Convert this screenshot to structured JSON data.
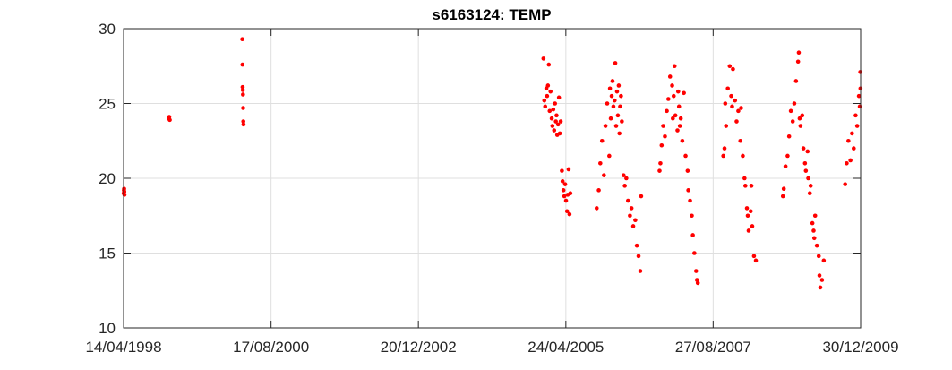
{
  "chart_data": {
    "type": "scatter",
    "title": "s6163124: TEMP",
    "xlabel": "",
    "ylabel": "",
    "xlim": [
      "1998-04-14",
      "2009-12-30"
    ],
    "ylim": [
      10,
      30
    ],
    "x_ticks": [
      "1998-04-14",
      "2000-08-17",
      "2002-12-20",
      "2005-04-24",
      "2007-08-27",
      "2009-12-30"
    ],
    "x_tick_labels": [
      "14/04/1998",
      "17/08/2000",
      "20/12/2002",
      "24/04/2005",
      "27/08/2007",
      "30/12/2009"
    ],
    "y_ticks": [
      10,
      15,
      20,
      25,
      30
    ],
    "y_tick_labels": [
      "10",
      "15",
      "20",
      "25",
      "30"
    ],
    "grid": true,
    "marker_color": "#ff0000",
    "series": [
      {
        "points": [
          [
            "1998-04-15",
            19.0
          ],
          [
            "1998-04-16",
            19.2
          ],
          [
            "1998-04-17",
            19.3
          ],
          [
            "1998-04-18",
            19.1
          ],
          [
            "1998-04-19",
            18.9
          ],
          [
            "1999-01-01",
            24.0
          ],
          [
            "1999-01-04",
            24.1
          ],
          [
            "1999-01-07",
            23.9
          ],
          [
            "2000-03-03",
            29.3
          ],
          [
            "2000-03-04",
            27.6
          ],
          [
            "2000-03-05",
            26.1
          ],
          [
            "2000-03-06",
            25.9
          ],
          [
            "2000-03-07",
            25.6
          ],
          [
            "2000-03-08",
            24.7
          ],
          [
            "2000-03-09",
            23.8
          ],
          [
            "2000-03-10",
            23.6
          ],
          [
            "2004-12-15",
            28.0
          ],
          [
            "2004-12-20",
            25.2
          ],
          [
            "2004-12-25",
            24.8
          ],
          [
            "2005-01-01",
            26.0
          ],
          [
            "2005-01-05",
            25.5
          ],
          [
            "2005-01-10",
            26.2
          ],
          [
            "2005-01-15",
            27.6
          ],
          [
            "2005-01-20",
            24.5
          ],
          [
            "2005-01-25",
            25.8
          ],
          [
            "2005-02-01",
            24.0
          ],
          [
            "2005-02-05",
            23.5
          ],
          [
            "2005-02-10",
            24.6
          ],
          [
            "2005-02-15",
            23.2
          ],
          [
            "2005-02-20",
            25.0
          ],
          [
            "2005-02-25",
            23.8
          ],
          [
            "2005-03-01",
            24.2
          ],
          [
            "2005-03-05",
            22.9
          ],
          [
            "2005-03-10",
            23.6
          ],
          [
            "2005-03-15",
            25.4
          ],
          [
            "2005-03-20",
            23.0
          ],
          [
            "2005-03-25",
            23.8
          ],
          [
            "2005-04-01",
            20.5
          ],
          [
            "2005-04-05",
            19.8
          ],
          [
            "2005-04-10",
            19.2
          ],
          [
            "2005-04-15",
            18.8
          ],
          [
            "2005-04-20",
            19.6
          ],
          [
            "2005-04-25",
            18.5
          ],
          [
            "2005-05-01",
            17.8
          ],
          [
            "2005-05-05",
            18.9
          ],
          [
            "2005-05-10",
            20.6
          ],
          [
            "2005-05-15",
            17.6
          ],
          [
            "2005-05-20",
            19.0
          ],
          [
            "2005-10-20",
            18.0
          ],
          [
            "2005-11-01",
            19.2
          ],
          [
            "2005-11-10",
            21.0
          ],
          [
            "2005-11-20",
            22.5
          ],
          [
            "2005-12-01",
            20.2
          ],
          [
            "2005-12-10",
            23.5
          ],
          [
            "2005-12-20",
            25.0
          ],
          [
            "2006-01-01",
            21.5
          ],
          [
            "2006-01-05",
            26.0
          ],
          [
            "2006-01-10",
            24.0
          ],
          [
            "2006-01-15",
            25.5
          ],
          [
            "2006-01-20",
            26.5
          ],
          [
            "2006-01-25",
            24.8
          ],
          [
            "2006-02-01",
            25.2
          ],
          [
            "2006-02-05",
            27.7
          ],
          [
            "2006-02-10",
            23.5
          ],
          [
            "2006-02-15",
            25.8
          ],
          [
            "2006-02-20",
            24.2
          ],
          [
            "2006-02-25",
            26.2
          ],
          [
            "2006-03-01",
            23.0
          ],
          [
            "2006-03-05",
            24.8
          ],
          [
            "2006-03-10",
            25.5
          ],
          [
            "2006-03-15",
            23.8
          ],
          [
            "2006-03-25",
            20.2
          ],
          [
            "2006-04-01",
            19.5
          ],
          [
            "2006-04-10",
            20.0
          ],
          [
            "2006-04-20",
            18.5
          ],
          [
            "2006-05-01",
            17.5
          ],
          [
            "2006-05-10",
            18.0
          ],
          [
            "2006-05-20",
            16.8
          ],
          [
            "2006-06-01",
            17.2
          ],
          [
            "2006-06-10",
            15.5
          ],
          [
            "2006-06-20",
            14.8
          ],
          [
            "2006-06-30",
            13.8
          ],
          [
            "2006-07-05",
            18.8
          ],
          [
            "2006-10-20",
            20.5
          ],
          [
            "2006-10-25",
            21.0
          ],
          [
            "2006-11-01",
            22.2
          ],
          [
            "2006-11-10",
            23.5
          ],
          [
            "2006-11-20",
            22.8
          ],
          [
            "2006-12-01",
            24.5
          ],
          [
            "2006-12-10",
            25.3
          ],
          [
            "2006-12-20",
            26.8
          ],
          [
            "2007-01-01",
            26.2
          ],
          [
            "2007-01-05",
            24.0
          ],
          [
            "2007-01-10",
            25.5
          ],
          [
            "2007-01-15",
            27.5
          ],
          [
            "2007-01-20",
            24.2
          ],
          [
            "2007-02-01",
            23.2
          ],
          [
            "2007-02-05",
            25.8
          ],
          [
            "2007-02-10",
            24.8
          ],
          [
            "2007-02-15",
            23.5
          ],
          [
            "2007-02-20",
            24.0
          ],
          [
            "2007-03-01",
            22.5
          ],
          [
            "2007-03-10",
            25.7
          ],
          [
            "2007-03-20",
            21.5
          ],
          [
            "2007-04-01",
            20.5
          ],
          [
            "2007-04-05",
            19.2
          ],
          [
            "2007-04-15",
            18.5
          ],
          [
            "2007-04-25",
            17.5
          ],
          [
            "2007-05-01",
            16.2
          ],
          [
            "2007-05-10",
            15.0
          ],
          [
            "2007-05-20",
            13.8
          ],
          [
            "2007-05-25",
            13.2
          ],
          [
            "2007-05-30",
            13.0
          ],
          [
            "2007-10-25",
            21.5
          ],
          [
            "2007-11-01",
            22.0
          ],
          [
            "2007-11-05",
            25.0
          ],
          [
            "2007-11-10",
            23.5
          ],
          [
            "2007-11-20",
            26.0
          ],
          [
            "2007-12-01",
            27.5
          ],
          [
            "2007-12-10",
            25.5
          ],
          [
            "2007-12-15",
            24.8
          ],
          [
            "2007-12-20",
            27.3
          ],
          [
            "2008-01-01",
            25.2
          ],
          [
            "2008-01-10",
            23.8
          ],
          [
            "2008-01-20",
            24.5
          ],
          [
            "2008-02-01",
            22.5
          ],
          [
            "2008-02-05",
            24.7
          ],
          [
            "2008-02-15",
            21.5
          ],
          [
            "2008-02-25",
            20.0
          ],
          [
            "2008-03-01",
            19.5
          ],
          [
            "2008-03-10",
            18.0
          ],
          [
            "2008-03-15",
            17.5
          ],
          [
            "2008-03-20",
            16.5
          ],
          [
            "2008-04-01",
            17.8
          ],
          [
            "2008-04-05",
            19.5
          ],
          [
            "2008-04-10",
            16.8
          ],
          [
            "2008-04-20",
            14.8
          ],
          [
            "2008-05-01",
            14.5
          ],
          [
            "2008-10-05",
            18.8
          ],
          [
            "2008-10-10",
            19.3
          ],
          [
            "2008-10-20",
            20.8
          ],
          [
            "2008-11-01",
            21.5
          ],
          [
            "2008-11-10",
            22.8
          ],
          [
            "2008-11-20",
            24.5
          ],
          [
            "2008-12-01",
            23.8
          ],
          [
            "2008-12-10",
            25.0
          ],
          [
            "2008-12-20",
            26.5
          ],
          [
            "2009-01-01",
            27.8
          ],
          [
            "2009-01-05",
            28.4
          ],
          [
            "2009-01-10",
            24.0
          ],
          [
            "2009-01-15",
            23.5
          ],
          [
            "2009-01-25",
            24.2
          ],
          [
            "2009-02-01",
            22.0
          ],
          [
            "2009-02-10",
            21.0
          ],
          [
            "2009-02-15",
            20.5
          ],
          [
            "2009-02-25",
            21.8
          ],
          [
            "2009-03-01",
            20.0
          ],
          [
            "2009-03-10",
            19.0
          ],
          [
            "2009-03-15",
            19.5
          ],
          [
            "2009-03-25",
            17.0
          ],
          [
            "2009-04-01",
            16.5
          ],
          [
            "2009-04-05",
            16.0
          ],
          [
            "2009-04-10",
            17.5
          ],
          [
            "2009-04-20",
            15.5
          ],
          [
            "2009-05-01",
            14.8
          ],
          [
            "2009-05-05",
            13.5
          ],
          [
            "2009-05-10",
            12.7
          ],
          [
            "2009-05-20",
            13.2
          ],
          [
            "2009-05-30",
            14.5
          ],
          [
            "2009-10-01",
            19.6
          ],
          [
            "2009-10-10",
            21.0
          ],
          [
            "2009-10-20",
            22.5
          ],
          [
            "2009-11-01",
            21.2
          ],
          [
            "2009-11-10",
            23.0
          ],
          [
            "2009-11-20",
            22.0
          ],
          [
            "2009-12-01",
            24.2
          ],
          [
            "2009-12-10",
            23.5
          ],
          [
            "2009-12-20",
            25.5
          ],
          [
            "2009-12-25",
            24.8
          ],
          [
            "2009-12-28",
            27.1
          ],
          [
            "2009-12-29",
            26.0
          ]
        ]
      }
    ]
  }
}
